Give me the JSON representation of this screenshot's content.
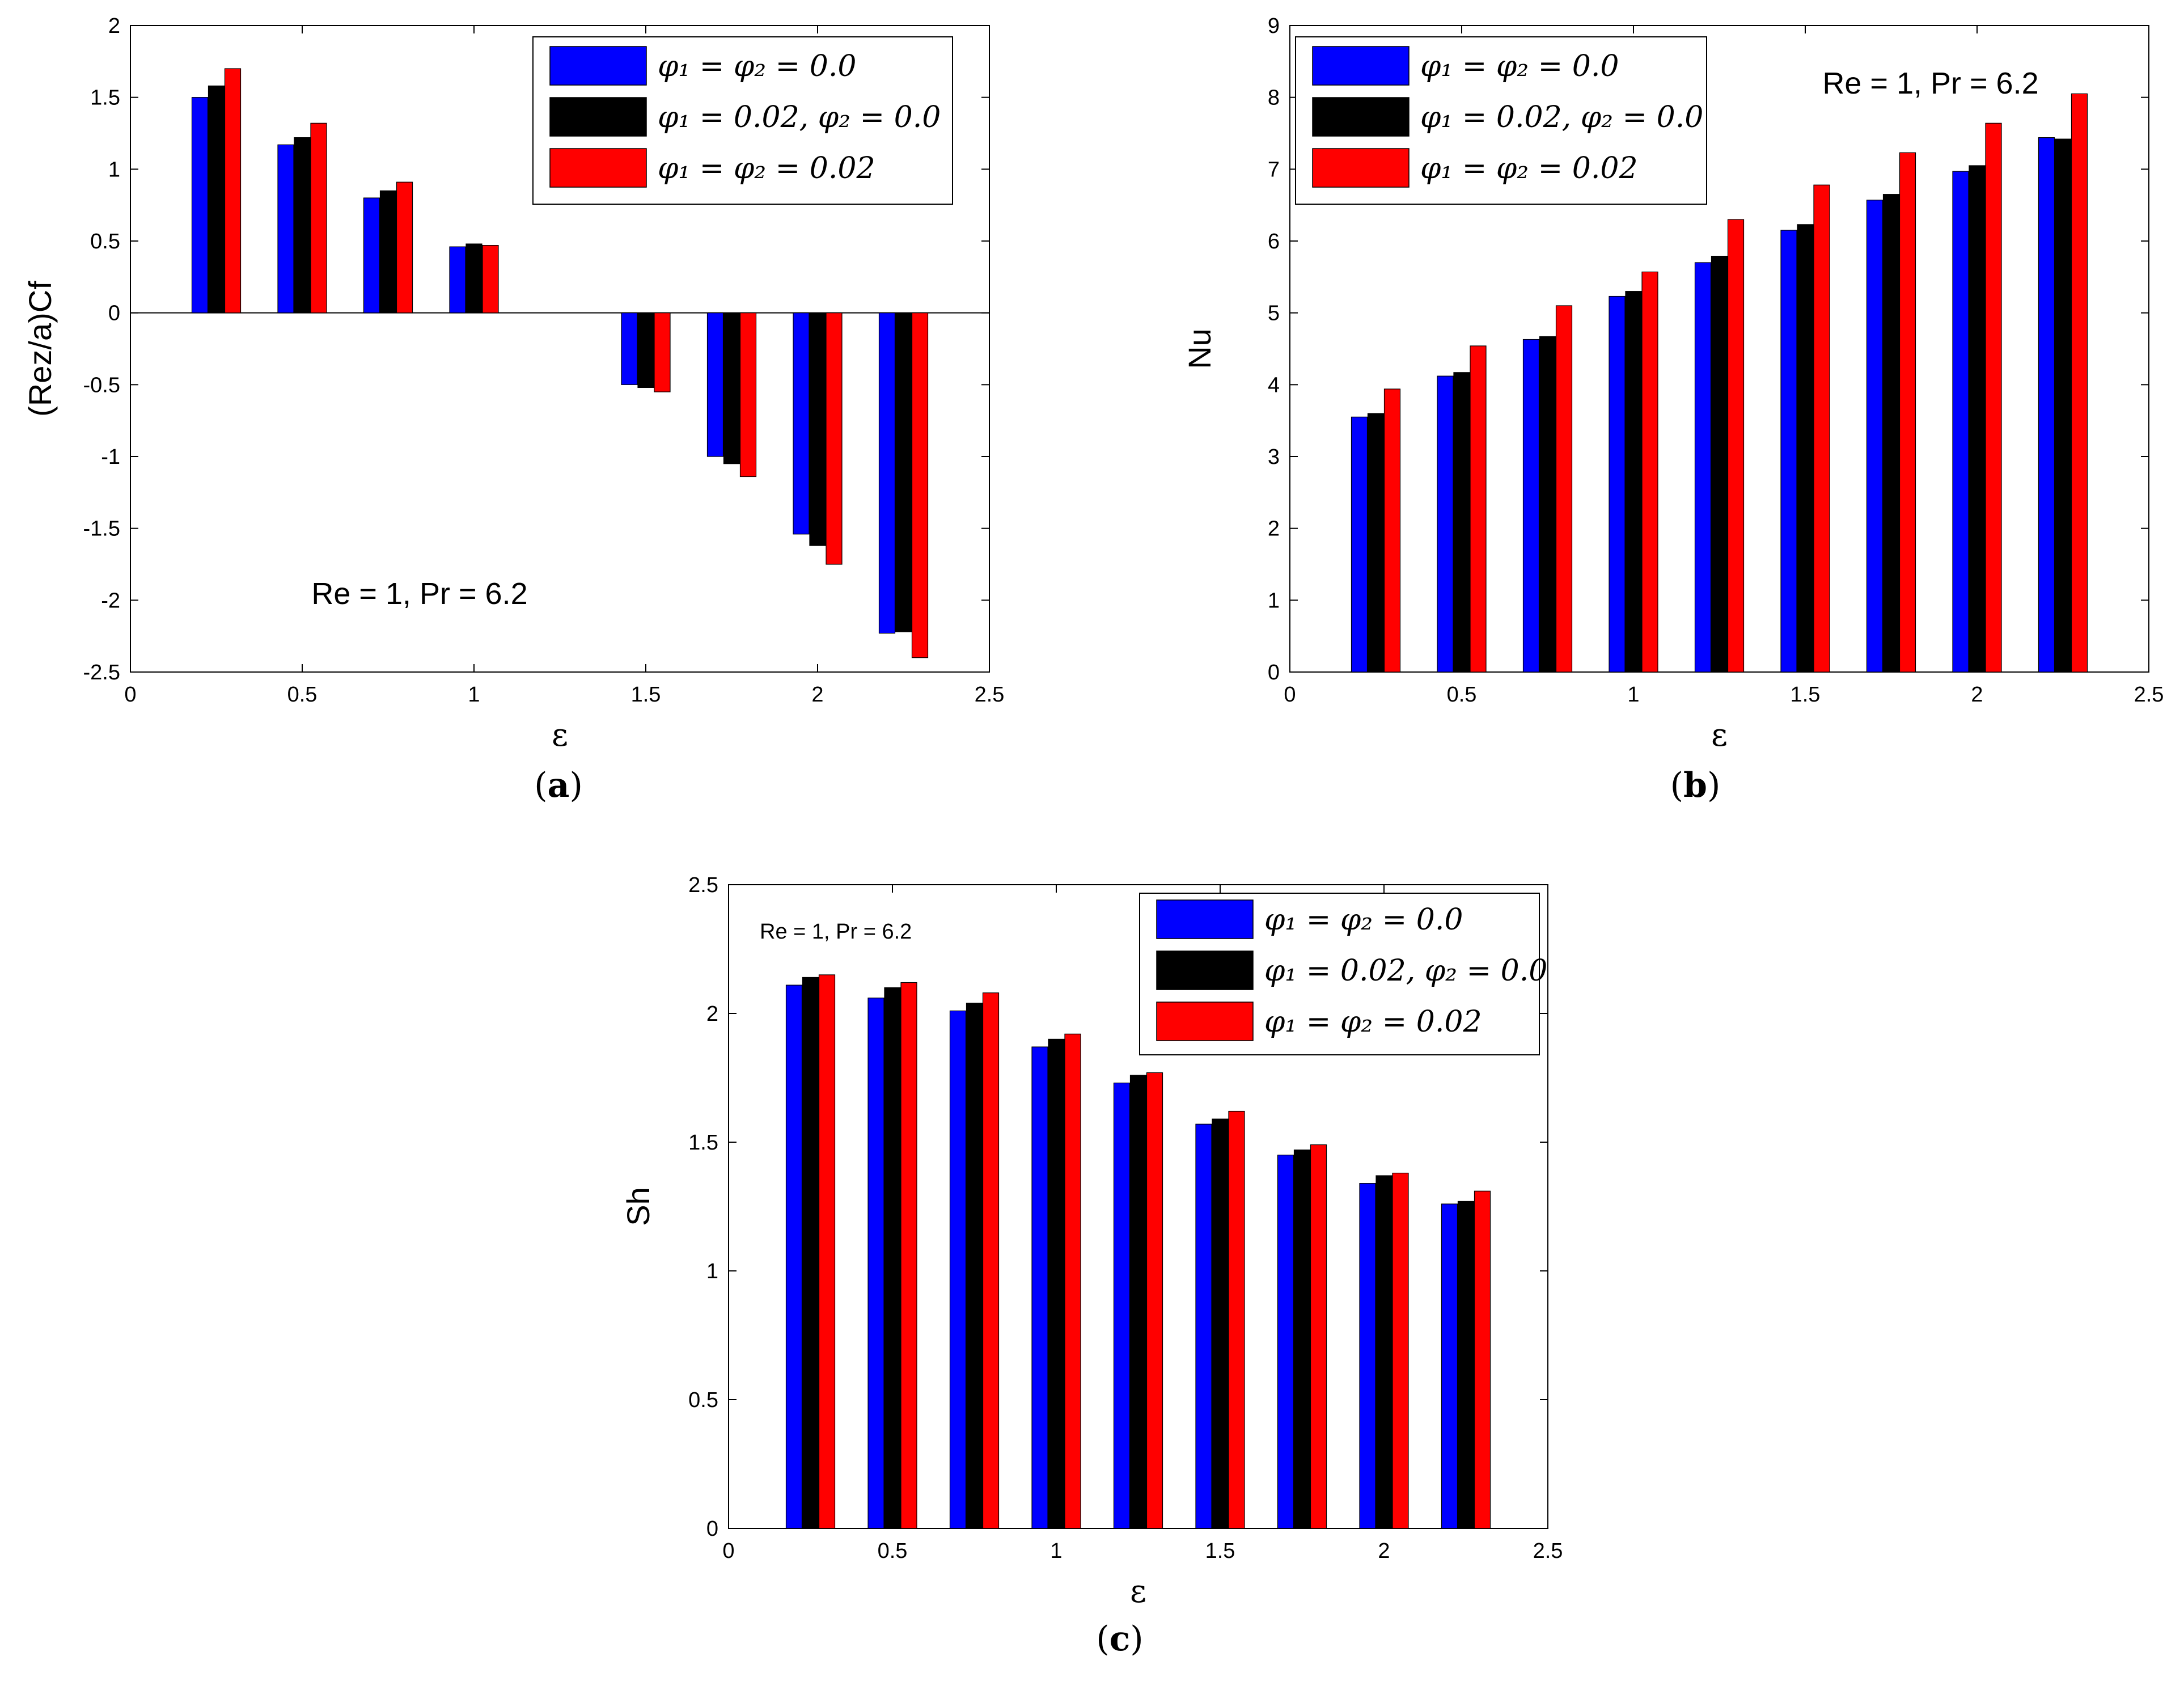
{
  "figure": {
    "panel_labels": [
      "a",
      "b",
      "c"
    ]
  },
  "colors": {
    "series": [
      "#0000ff",
      "#000000",
      "#ff0000"
    ],
    "axis": "#000000",
    "background": "#ffffff"
  },
  "chart_data": [
    {
      "id": "a",
      "type": "bar",
      "title": "",
      "xlabel": "ε",
      "ylabel": "(Rez/a)Cf",
      "xlim": [
        0,
        2.5
      ],
      "ylim": [
        -2.5,
        2
      ],
      "xticks": [
        "0",
        "0.5",
        "1",
        "1.5",
        "2",
        "2.5"
      ],
      "yticks": [
        "-2.5",
        "-2",
        "-1.5",
        "-1",
        "-0.5",
        "0",
        "0.5",
        "1",
        "1.5",
        "2"
      ],
      "x": [
        0.25,
        0.5,
        0.75,
        1.0,
        1.5,
        1.75,
        2.0,
        2.25
      ],
      "series": [
        {
          "name": "φ1 = φ2 = 0.0",
          "values": [
            1.5,
            1.17,
            0.8,
            0.46,
            -0.5,
            -1.0,
            -1.54,
            -2.23
          ]
        },
        {
          "name": "φ1 = 0.02, φ2 = 0.0",
          "values": [
            1.58,
            1.22,
            0.85,
            0.48,
            -0.52,
            -1.05,
            -1.62,
            -2.22
          ]
        },
        {
          "name": "φ1 = φ2 = 0.02",
          "values": [
            1.7,
            1.32,
            0.91,
            0.47,
            -0.55,
            -1.14,
            -1.75,
            -2.4
          ]
        }
      ],
      "legend_labels": [
        "φ₁ = φ₂ = 0.0",
        "φ₁ = 0.02, φ₂ = 0.0",
        "φ₁ = φ₂ = 0.02"
      ],
      "legend_position": "top-right",
      "annotation": "Re = 1, Pr = 6.2"
    },
    {
      "id": "b",
      "type": "bar",
      "title": "",
      "xlabel": "ε",
      "ylabel": "Nu",
      "xlim": [
        0,
        2.5
      ],
      "ylim": [
        0,
        9
      ],
      "xticks": [
        "0",
        "0.5",
        "1",
        "1.5",
        "2",
        "2.5"
      ],
      "yticks": [
        "0",
        "1",
        "2",
        "3",
        "4",
        "5",
        "6",
        "7",
        "8",
        "9"
      ],
      "x": [
        0.25,
        0.5,
        0.75,
        1.0,
        1.25,
        1.5,
        1.75,
        2.0,
        2.25
      ],
      "series": [
        {
          "name": "φ1 = φ2 = 0.0",
          "values": [
            3.55,
            4.12,
            4.63,
            5.23,
            5.7,
            6.15,
            6.57,
            6.97,
            7.44
          ]
        },
        {
          "name": "φ1 = 0.02, φ2 = 0.0",
          "values": [
            3.6,
            4.17,
            4.67,
            5.3,
            5.79,
            6.23,
            6.65,
            7.05,
            7.42
          ]
        },
        {
          "name": "φ1 = φ2 = 0.02",
          "values": [
            3.94,
            4.54,
            5.1,
            5.57,
            6.3,
            6.78,
            7.23,
            7.64,
            8.05
          ]
        }
      ],
      "legend_labels": [
        "φ₁ = φ₂ = 0.0",
        "φ₁ = 0.02, φ₂ = 0.0",
        "φ₁ = φ₂ = 0.02"
      ],
      "legend_position": "top-left",
      "annotation": "Re = 1, Pr = 6.2"
    },
    {
      "id": "c",
      "type": "bar",
      "title": "",
      "xlabel": "ε",
      "ylabel": "Sh",
      "xlim": [
        0,
        2.5
      ],
      "ylim": [
        0,
        2.5
      ],
      "xticks": [
        "0",
        "0.5",
        "1",
        "1.5",
        "2",
        "2.5"
      ],
      "yticks": [
        "0",
        "0.5",
        "1",
        "1.5",
        "2",
        "2.5"
      ],
      "x": [
        0.25,
        0.5,
        0.75,
        1.0,
        1.25,
        1.5,
        1.75,
        2.0,
        2.25
      ],
      "series": [
        {
          "name": "φ1 = φ2 = 0.0",
          "values": [
            2.11,
            2.06,
            2.01,
            1.87,
            1.73,
            1.57,
            1.45,
            1.34,
            1.26
          ]
        },
        {
          "name": "φ1 = 0.02, φ2 = 0.0",
          "values": [
            2.14,
            2.1,
            2.04,
            1.9,
            1.76,
            1.59,
            1.47,
            1.37,
            1.27
          ]
        },
        {
          "name": "φ1 = φ2 = 0.02",
          "values": [
            2.15,
            2.12,
            2.08,
            1.92,
            1.77,
            1.62,
            1.49,
            1.38,
            1.31
          ]
        }
      ],
      "legend_labels": [
        "φ₁ = φ₂ = 0.0",
        "φ₁ = 0.02, φ₂ = 0.0",
        "φ₁ = φ₂ = 0.02"
      ],
      "legend_position": "top-right",
      "annotation": "Re = 1, Pr = 6.2"
    }
  ]
}
